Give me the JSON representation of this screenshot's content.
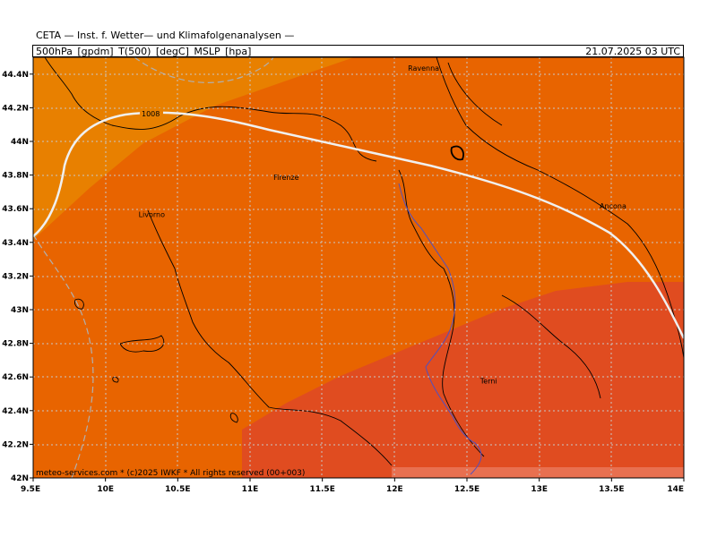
{
  "header": {
    "title": "CETA — Inst. f. Wetter— und Klimafolgenanalysen —",
    "parameters": "500hPa_[gpdm]_T(500)_[degC]_MSLP_[hpa]",
    "valid_time": "21.07.2025 03 UTC"
  },
  "map": {
    "lon_ticks": [
      "9.5E",
      "10E",
      "10.5E",
      "11E",
      "11.5E",
      "12E",
      "12.5E",
      "13E",
      "13.5E",
      "14E"
    ],
    "lat_ticks": [
      "44.4N",
      "44.2N",
      "44N",
      "43.8N",
      "43.6N",
      "43.4N",
      "43.2N",
      "43N",
      "42.8N",
      "42.6N",
      "42.4N",
      "42.2N",
      "42N"
    ],
    "lon_range": [
      9.5,
      14.0
    ],
    "lat_range": [
      42.0,
      44.5
    ],
    "cities": [
      {
        "name": "Ravenna",
        "lon": 12.2,
        "lat": 44.42
      },
      {
        "name": "Firenze",
        "lon": 11.25,
        "lat": 43.77
      },
      {
        "name": "Livorno",
        "lon": 10.32,
        "lat": 43.55
      },
      {
        "name": "Ancona",
        "lon": 13.51,
        "lat": 43.6
      },
      {
        "name": "Terni",
        "lon": 12.65,
        "lat": 42.56
      }
    ],
    "isobar_label": "1008",
    "credit": "meteo-services.com * (c)2025 IWKF * All rights reserved (00+003)",
    "colors": {
      "temp_warmest_nw": "#e88000",
      "temp_mid": "#e86400",
      "temp_se": "#e04c20",
      "temp_bottom_strip": "#e87050",
      "isobar": "#f0f0f0",
      "coast": "#000000",
      "river": "#5050c0",
      "grid": "#c8c8c8",
      "geopotential_dashed": "#b0b0b0"
    }
  }
}
